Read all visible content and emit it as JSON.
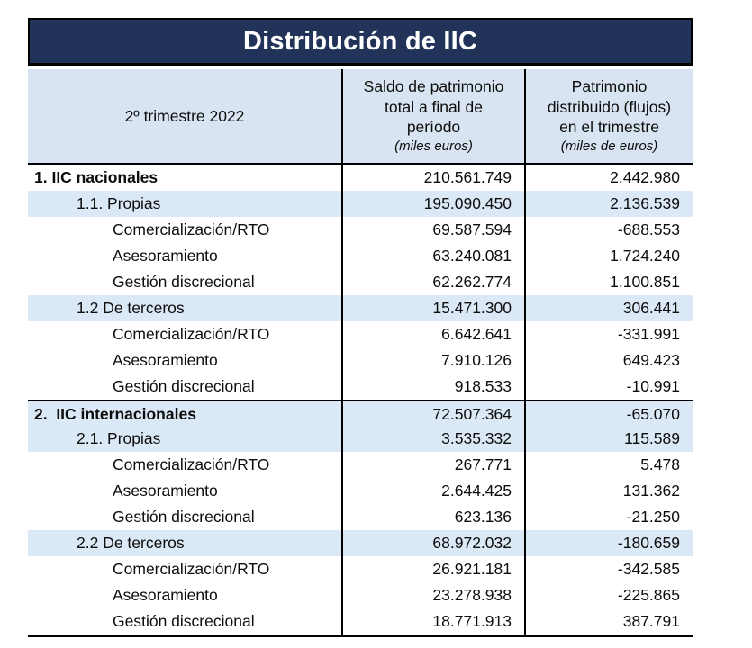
{
  "title": "Distribución de IIC",
  "colors": {
    "navy": "#22335A",
    "header_blue": "#D8E4F1",
    "stripe_blue": "#DBE8F6"
  },
  "header": {
    "period": "2º trimestre 2022",
    "saldo_lines": [
      "Saldo de patrimonio",
      "total a final de",
      "período"
    ],
    "saldo_unit": "(miles euros)",
    "flujo_lines": [
      "Patrimonio",
      "distribuido (flujos)",
      "en el trimestre"
    ],
    "flujo_unit": "(miles de euros)"
  },
  "rows": [
    {
      "label": "1. IIC nacionales",
      "saldo": "210.561.749",
      "flujo": "2.442.980"
    },
    {
      "label": "1.1. Propias",
      "saldo": "195.090.450",
      "flujo": "2.136.539"
    },
    {
      "label": "Comercialización/RTO",
      "saldo": "69.587.594",
      "flujo": "-688.553"
    },
    {
      "label": "Asesoramiento",
      "saldo": "63.240.081",
      "flujo": "1.724.240"
    },
    {
      "label": "Gestión discrecional",
      "saldo": "62.262.774",
      "flujo": "1.100.851"
    },
    {
      "label": "1.2 De terceros",
      "saldo": "15.471.300",
      "flujo": "306.441"
    },
    {
      "label": "Comercialización/RTO",
      "saldo": "6.642.641",
      "flujo": "-331.991"
    },
    {
      "label": "Asesoramiento",
      "saldo": "7.910.126",
      "flujo": "649.423"
    },
    {
      "label": "Gestión discrecional",
      "saldo": "918.533",
      "flujo": "-10.991"
    },
    {
      "label": "2.  IIC internacionales",
      "saldo": "72.507.364",
      "flujo": "-65.070"
    },
    {
      "label": "2.1. Propias",
      "saldo": "3.535.332",
      "flujo": "115.589"
    },
    {
      "label": "Comercialización/RTO",
      "saldo": "267.771",
      "flujo": "5.478"
    },
    {
      "label": "Asesoramiento",
      "saldo": "2.644.425",
      "flujo": "131.362"
    },
    {
      "label": "Gestión discrecional",
      "saldo": "623.136",
      "flujo": "-21.250"
    },
    {
      "label": "2.2 De terceros",
      "saldo": "68.972.032",
      "flujo": "-180.659"
    },
    {
      "label": "Comercialización/RTO",
      "saldo": "26.921.181",
      "flujo": "-342.585"
    },
    {
      "label": "Asesoramiento",
      "saldo": "23.278.938",
      "flujo": "-225.865"
    },
    {
      "label": "Gestión discrecional",
      "saldo": "18.771.913",
      "flujo": "387.791"
    }
  ]
}
